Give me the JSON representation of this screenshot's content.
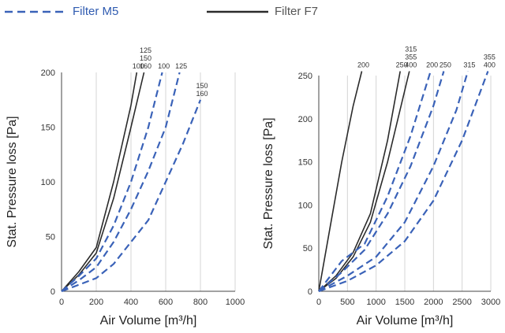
{
  "legend": {
    "m5_label": "Filter M5",
    "f7_label": "Filter F7",
    "m5_color": "#3a62b8",
    "f7_color": "#2b2b2b"
  },
  "chart_data": [
    {
      "type": "line",
      "xlabel": "Air Volume [m³/h]",
      "ylabel": "Stat. Pressure loss [Pa]",
      "xlim": [
        0,
        1000
      ],
      "ylim": [
        0,
        200
      ],
      "xticks": [
        0,
        200,
        400,
        600,
        800,
        1000
      ],
      "yticks": [
        0,
        50,
        100,
        150,
        200
      ],
      "grid": "vertical",
      "series": [
        {
          "filter": "F7",
          "label": "100",
          "x": [
            0,
            100,
            200,
            300,
            400,
            433
          ],
          "y": [
            0,
            18,
            40,
            100,
            170,
            200
          ]
        },
        {
          "filter": "F7",
          "label": "125\n150\n160",
          "x": [
            0,
            100,
            200,
            300,
            400,
            475
          ],
          "y": [
            0,
            15,
            35,
            85,
            150,
            200
          ]
        },
        {
          "filter": "M5",
          "label": "100",
          "x": [
            0,
            100,
            200,
            300,
            400,
            500,
            580
          ],
          "y": [
            0,
            14,
            30,
            60,
            100,
            150,
            200
          ]
        },
        {
          "filter": "M5",
          "label": "125",
          "x": [
            0,
            100,
            200,
            300,
            400,
            500,
            600,
            680
          ],
          "y": [
            0,
            10,
            22,
            45,
            75,
            110,
            150,
            200
          ]
        },
        {
          "filter": "M5",
          "label": "150\n160",
          "x": [
            0,
            100,
            200,
            300,
            400,
            500,
            600,
            700,
            800
          ],
          "y": [
            0,
            6,
            12,
            25,
            45,
            65,
            100,
            135,
            175
          ]
        }
      ]
    },
    {
      "type": "line",
      "xlabel": "Air Volume [m³/h]",
      "ylabel": "Stat. Pressure loss [Pa]",
      "xlim": [
        0,
        3000
      ],
      "ylim": [
        0,
        250
      ],
      "xticks": [
        0,
        500,
        1000,
        1500,
        2000,
        2500,
        3000
      ],
      "yticks": [
        0,
        50,
        100,
        150,
        200,
        250
      ],
      "grid": "vertical",
      "series": [
        {
          "filter": "F7",
          "label": "200",
          "x": [
            0,
            200,
            400,
            600,
            750
          ],
          "y": [
            0,
            75,
            150,
            215,
            255
          ]
        },
        {
          "filter": "F7",
          "label": "250",
          "x": [
            0,
            300,
            600,
            900,
            1200,
            1420
          ],
          "y": [
            0,
            18,
            45,
            90,
            175,
            255
          ]
        },
        {
          "filter": "F7",
          "label": "315\n355\n400",
          "x": [
            0,
            300,
            600,
            900,
            1200,
            1580
          ],
          "y": [
            0,
            15,
            40,
            80,
            150,
            255
          ]
        },
        {
          "filter": "M5",
          "label": "200",
          "x": [
            0,
            400,
            800,
            1200,
            1600,
            1950
          ],
          "y": [
            0,
            35,
            55,
            110,
            180,
            255
          ]
        },
        {
          "filter": "M5",
          "label": "250",
          "x": [
            0,
            400,
            800,
            1200,
            1600,
            2000,
            2180
          ],
          "y": [
            0,
            22,
            48,
            90,
            145,
            215,
            255
          ]
        },
        {
          "filter": "M5",
          "label": "315",
          "x": [
            0,
            500,
            1000,
            1500,
            2000,
            2400,
            2600
          ],
          "y": [
            0,
            18,
            40,
            80,
            145,
            210,
            255
          ]
        },
        {
          "filter": "M5",
          "label": "355\n400",
          "x": [
            0,
            500,
            1000,
            1500,
            2000,
            2500,
            2950
          ],
          "y": [
            0,
            12,
            30,
            58,
            105,
            175,
            255
          ]
        }
      ]
    }
  ]
}
